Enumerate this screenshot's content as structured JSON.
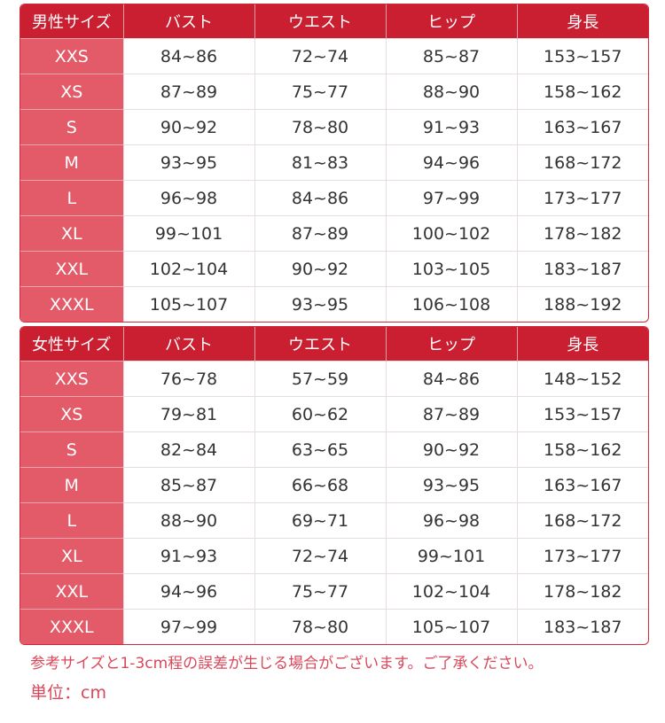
{
  "tables": [
    {
      "headers": [
        "男性サイズ",
        "バスト",
        "ウエスト",
        "ヒップ",
        "身長"
      ],
      "rows": [
        [
          "XXS",
          "84~86",
          "72~74",
          "85~87",
          "153~157"
        ],
        [
          "XS",
          "87~89",
          "75~77",
          "88~90",
          "158~162"
        ],
        [
          "S",
          "90~92",
          "78~80",
          "91~93",
          "163~167"
        ],
        [
          "M",
          "93~95",
          "81~83",
          "94~96",
          "168~172"
        ],
        [
          "L",
          "96~98",
          "84~86",
          "97~99",
          "173~177"
        ],
        [
          "XL",
          "99~101",
          "87~89",
          "100~102",
          "178~182"
        ],
        [
          "XXL",
          "102~104",
          "90~92",
          "103~105",
          "183~187"
        ],
        [
          "XXXL",
          "105~107",
          "93~95",
          "106~108",
          "188~192"
        ]
      ]
    },
    {
      "headers": [
        "女性サイズ",
        "バスト",
        "ウエスト",
        "ヒップ",
        "身長"
      ],
      "rows": [
        [
          "XXS",
          "76~78",
          "57~59",
          "84~86",
          "148~152"
        ],
        [
          "XS",
          "79~81",
          "60~62",
          "87~89",
          "153~157"
        ],
        [
          "S",
          "82~84",
          "63~65",
          "90~92",
          "158~162"
        ],
        [
          "M",
          "85~87",
          "66~68",
          "93~95",
          "163~167"
        ],
        [
          "L",
          "88~90",
          "69~71",
          "96~98",
          "168~172"
        ],
        [
          "XL",
          "91~93",
          "72~74",
          "99~101",
          "173~177"
        ],
        [
          "XXL",
          "94~96",
          "75~77",
          "102~104",
          "178~182"
        ],
        [
          "XXXL",
          "97~99",
          "78~80",
          "105~107",
          "183~187"
        ]
      ]
    }
  ],
  "notes": {
    "tolerance": "参考サイズと1-3cm程の誤差が生じる場合がございます。ご了承ください。",
    "unit": "単位：cm"
  },
  "colors": {
    "header": "#c91f30",
    "size_column": "#e35b68",
    "note_text": "#d9485a"
  }
}
